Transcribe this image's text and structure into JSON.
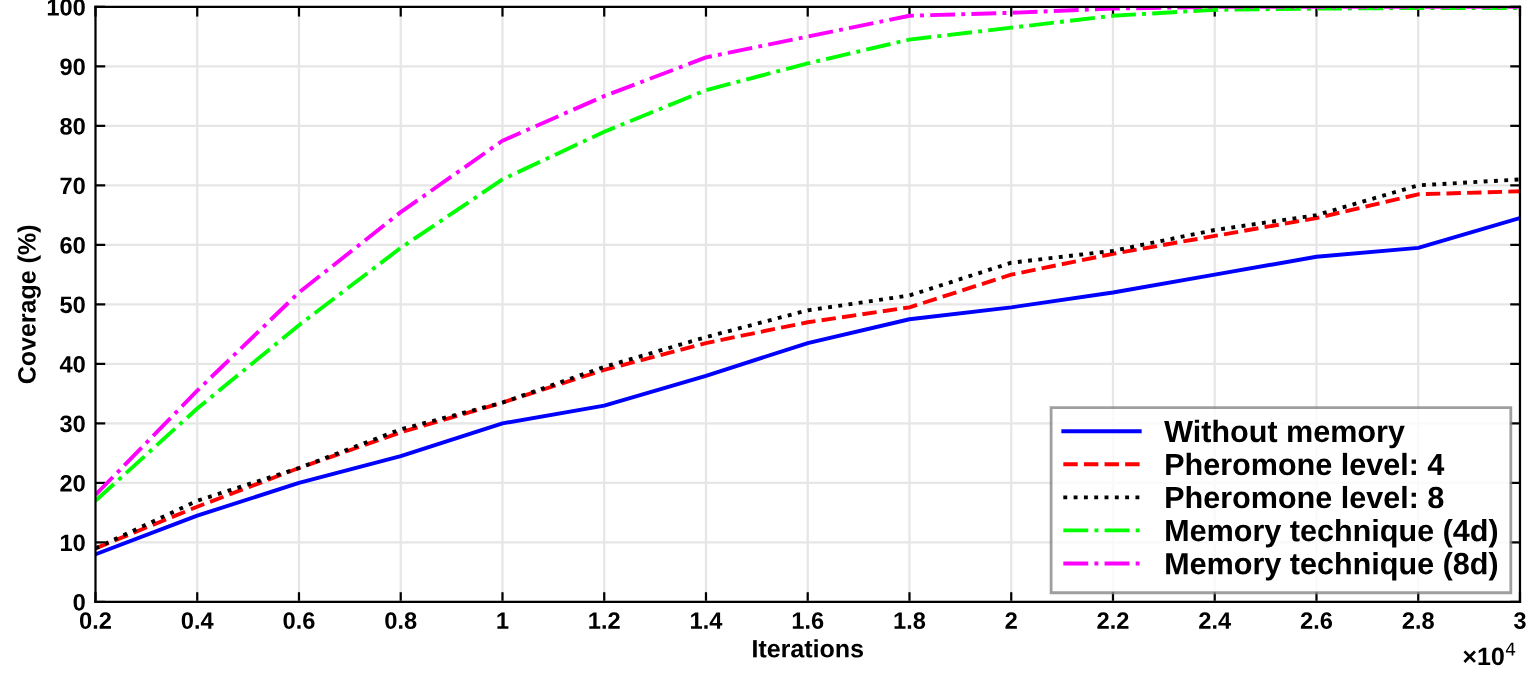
{
  "chart_data": {
    "type": "line",
    "xlabel": "Iterations",
    "ylabel": "Coverage (%)",
    "x": [
      0.2,
      0.4,
      0.6,
      0.8,
      1,
      1.2,
      1.4,
      1.6,
      1.8,
      2,
      2.2,
      2.4,
      2.6,
      2.8,
      3
    ],
    "series": [
      {
        "name": "Without memory",
        "color": "#0000ff",
        "line_style": "solid",
        "values": [
          8,
          14.5,
          20,
          24.5,
          30,
          33,
          38,
          43.5,
          47.5,
          49.5,
          52,
          55,
          58,
          59.5,
          64.5
        ]
      },
      {
        "name": "Pheromone level: 4",
        "color": "#ff0000",
        "line_style": "dashed",
        "values": [
          9,
          16,
          22.5,
          28.5,
          33.5,
          39,
          43.5,
          47,
          49.5,
          55,
          58.5,
          61.5,
          64.5,
          68.5,
          69
        ]
      },
      {
        "name": "Pheromone level: 8",
        "color": "#000000",
        "line_style": "dotted",
        "values": [
          9,
          17,
          22.5,
          29,
          33.5,
          39.5,
          44.5,
          49,
          51.5,
          57,
          59,
          62.5,
          65,
          70,
          71
        ]
      },
      {
        "name": "Memory technique (4d)",
        "color": "#00ff00",
        "line_style": "dashdot",
        "values": [
          17,
          32.5,
          46.5,
          59.5,
          71,
          79,
          86,
          90.5,
          94.5,
          96.5,
          98.5,
          99.5,
          99.7,
          99.8,
          99.8
        ]
      },
      {
        "name": "Memory technique (8d)",
        "color": "#ff00ff",
        "line_style": "dashdot",
        "values": [
          18,
          35.5,
          52,
          65.5,
          77.5,
          85,
          91.5,
          95,
          98.5,
          99,
          99.7,
          100,
          100,
          100,
          100
        ]
      }
    ],
    "xlim": [
      0.2,
      3
    ],
    "xticks": [
      0.2,
      0.4,
      0.6,
      0.8,
      1,
      1.2,
      1.4,
      1.6,
      1.8,
      2,
      2.2,
      2.4,
      2.6,
      2.8,
      3
    ],
    "ylim": [
      0,
      100
    ],
    "yticks": [
      0,
      10,
      20,
      30,
      40,
      50,
      60,
      70,
      80,
      90,
      100
    ],
    "annotations": [
      "×10$^{4}$"
    ],
    "grid": true,
    "legend": "bottom right",
    "marker": "none"
  }
}
